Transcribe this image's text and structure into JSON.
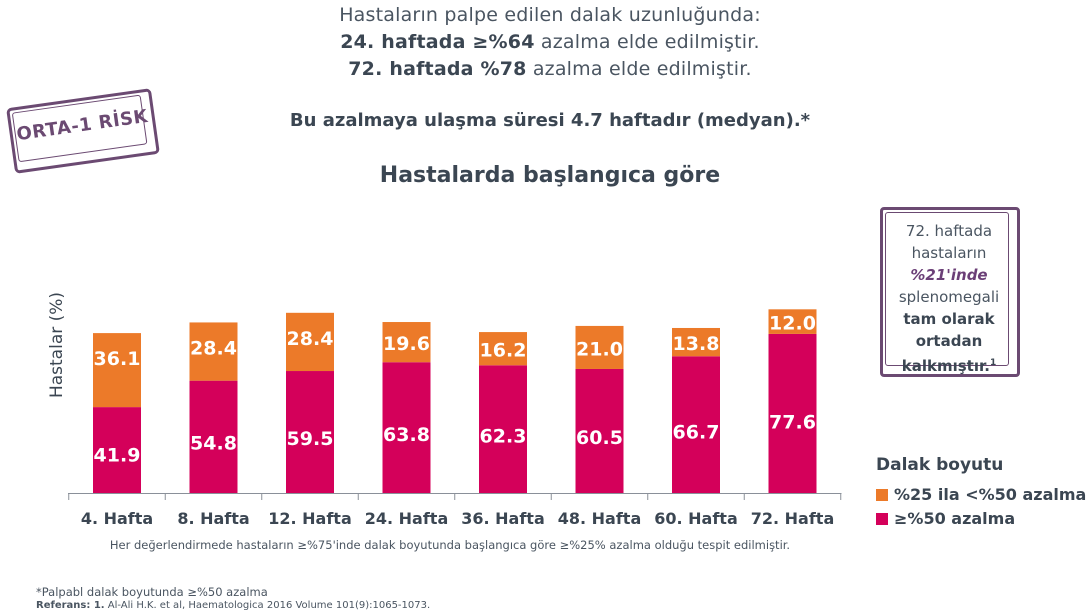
{
  "header": {
    "line1": "Hastaların palpe edilen dalak uzunluğunda:",
    "line2_bold": "24. haftada ≥%64",
    "line2_rest": " azalma elde edilmiştir.",
    "line3_bold": "72. haftada %78",
    "line3_rest": " azalma elde edilmiştir.",
    "summary": "Bu azalmaya ulaşma süresi 4.7 haftadır (medyan).*"
  },
  "stamp": {
    "label": "ORTA-1 RİSK"
  },
  "note_box": {
    "line1": "72. haftada",
    "line2": "hastaların",
    "line3": "%21'inde",
    "line4": "splenomegali",
    "line5": "tam olarak",
    "line6": "ortadan",
    "line7": "kalkmıştır.",
    "ref": "1"
  },
  "footnotes": {
    "main": "Her değerlendirmede hastaların ≥%75'inde dalak boyutunda başlangıca göre ≥%25% azalma olduğu tespit edilmiştir.",
    "asterisk": "*Palpabl dalak boyutunda ≥%50 azalma",
    "ref_label": "Referans: 1.",
    "ref_text": " Al-Ali H.K. et al, Haematologica 2016 Volume 101(9):1065-1073."
  },
  "colors": {
    "magenta": "#d4005a",
    "orange": "#ec7a29",
    "purple": "#6b4a72",
    "text": "#3b4652"
  },
  "chart_data": {
    "type": "bar",
    "stacked": true,
    "title": "Hastalarda başlangıca göre",
    "ylabel": "Hastalar (%)",
    "xlabel": "",
    "ylim": [
      0,
      100
    ],
    "categories": [
      "4. Hafta",
      "8. Hafta",
      "12. Hafta",
      "24. Hafta",
      "36. Hafta",
      "48. Hafta",
      "60. Hafta",
      "72. Hafta"
    ],
    "series": [
      {
        "name": "≥%50 azalma",
        "color": "#d4005a",
        "values": [
          41.9,
          54.8,
          59.5,
          63.8,
          62.3,
          60.5,
          66.7,
          77.6
        ]
      },
      {
        "name": "%25 ila <%50 azalma",
        "color": "#ec7a29",
        "values": [
          36.1,
          28.4,
          28.4,
          19.6,
          16.2,
          21.0,
          13.8,
          12.0
        ]
      }
    ],
    "value_labels": [
      [
        "41.9",
        "54.8",
        "59.5",
        "63.8",
        "62.3",
        "60.5",
        "66.7",
        "77.6"
      ],
      [
        "36.1",
        "28.4",
        "28.4",
        "19.6",
        "16.2",
        "21.0",
        "13.8",
        "12.0"
      ]
    ],
    "legend_title": "Dalak boyutu",
    "legend": [
      "%25 ila <%50 azalma",
      "≥%50 azalma"
    ]
  }
}
